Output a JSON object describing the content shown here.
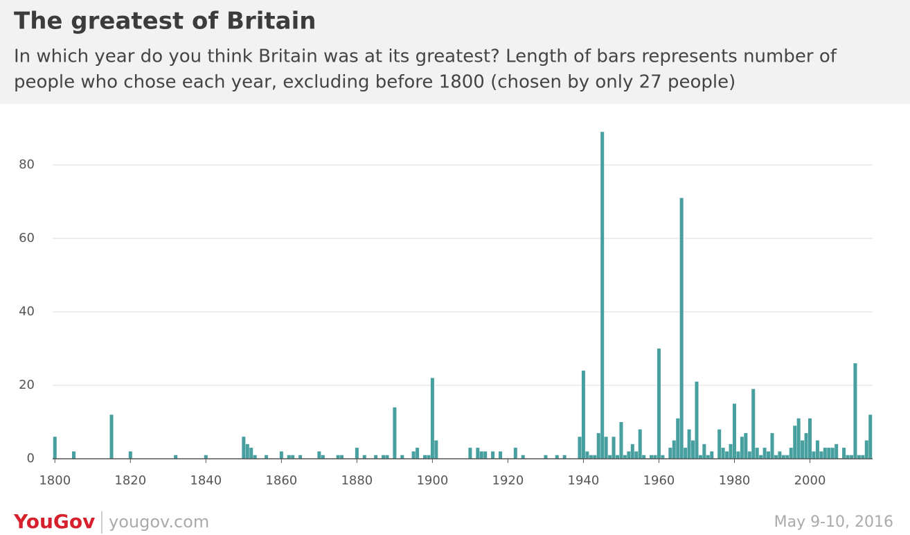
{
  "chart_data": {
    "type": "bar",
    "title": "The greatest of Britain",
    "subtitle": [
      "In which year do you think Britain was at its greatest? Length of bars represents number of",
      "people who chose each year, excluding before 1800 (chosen by only 27 people)"
    ],
    "x": [
      1800,
      1805,
      1815,
      1820,
      1832,
      1840,
      1850,
      1851,
      1852,
      1853,
      1856,
      1860,
      1862,
      1863,
      1865,
      1870,
      1871,
      1875,
      1876,
      1880,
      1882,
      1885,
      1887,
      1888,
      1890,
      1892,
      1895,
      1896,
      1898,
      1899,
      1900,
      1901,
      1910,
      1912,
      1913,
      1914,
      1916,
      1918,
      1922,
      1924,
      1930,
      1933,
      1935,
      1939,
      1940,
      1941,
      1942,
      1943,
      1944,
      1945,
      1946,
      1947,
      1948,
      1949,
      1950,
      1951,
      1952,
      1953,
      1954,
      1955,
      1956,
      1958,
      1959,
      1960,
      1961,
      1963,
      1964,
      1965,
      1966,
      1967,
      1968,
      1969,
      1970,
      1971,
      1972,
      1973,
      1974,
      1976,
      1977,
      1978,
      1979,
      1980,
      1981,
      1982,
      1983,
      1984,
      1985,
      1986,
      1987,
      1988,
      1989,
      1990,
      1991,
      1992,
      1993,
      1994,
      1995,
      1996,
      1997,
      1998,
      1999,
      2000,
      2001,
      2002,
      2003,
      2004,
      2005,
      2006,
      2007,
      2009,
      2010,
      2011,
      2012,
      2013,
      2014,
      2015,
      2016
    ],
    "values": [
      6,
      2,
      12,
      2,
      1,
      1,
      6,
      4,
      3,
      1,
      1,
      2,
      1,
      1,
      1,
      2,
      1,
      1,
      1,
      3,
      1,
      1,
      1,
      1,
      14,
      1,
      2,
      3,
      1,
      1,
      22,
      5,
      3,
      3,
      2,
      2,
      2,
      2,
      3,
      1,
      1,
      1,
      1,
      6,
      24,
      2,
      1,
      1,
      7,
      89,
      6,
      1,
      6,
      1,
      10,
      1,
      2,
      4,
      2,
      8,
      1,
      1,
      1,
      30,
      1,
      3,
      5,
      11,
      71,
      3,
      8,
      5,
      21,
      1,
      4,
      1,
      2,
      8,
      3,
      2,
      4,
      15,
      2,
      6,
      7,
      2,
      19,
      3,
      1,
      3,
      2,
      7,
      1,
      2,
      1,
      1,
      3,
      9,
      11,
      5,
      7,
      11,
      2,
      5,
      2,
      3,
      3,
      3,
      4,
      3,
      1,
      1,
      26,
      1,
      1,
      5,
      12
    ],
    "color": "#479f9f",
    "xlim": [
      1799.4,
      2016.6
    ],
    "xticks": [
      1800,
      1820,
      1840,
      1860,
      1880,
      1900,
      1920,
      1940,
      1960,
      1980,
      2000
    ],
    "ylim": [
      0,
      90
    ],
    "yticks": [
      0,
      20,
      40,
      60,
      80
    ],
    "grid": true
  },
  "footer": {
    "brand": "YouGov",
    "url": "yougov.com",
    "date": "May 9-10, 2016"
  }
}
